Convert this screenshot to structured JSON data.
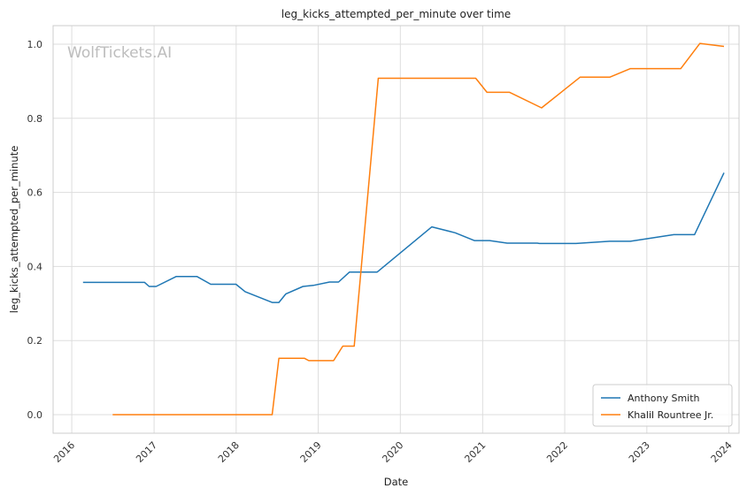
{
  "chart_data": {
    "type": "line",
    "title": "leg_kicks_attempted_per_minute over time",
    "xlabel": "Date",
    "ylabel": "leg_kicks_attempted_per_minute",
    "watermark": "WolfTickets.AI",
    "xlim": [
      "2015-10-10",
      "2024-02-15"
    ],
    "ylim": [
      -0.05,
      1.05
    ],
    "x_ticks": [
      "2016",
      "2017",
      "2018",
      "2019",
      "2020",
      "2021",
      "2022",
      "2023",
      "2024"
    ],
    "y_ticks": [
      "0.0",
      "0.2",
      "0.4",
      "0.6",
      "0.8",
      "1.0"
    ],
    "grid": true,
    "legend_position": "bottom-right",
    "series": [
      {
        "name": "Anthony Smith",
        "color": "#1f77b4",
        "points": [
          [
            "2016-02-20",
            0.357
          ],
          [
            "2016-11-20",
            0.357
          ],
          [
            "2016-12-10",
            0.346
          ],
          [
            "2017-01-10",
            0.346
          ],
          [
            "2017-04-10",
            0.373
          ],
          [
            "2017-07-10",
            0.373
          ],
          [
            "2017-09-10",
            0.352
          ],
          [
            "2017-12-31",
            0.352
          ],
          [
            "2018-02-10",
            0.332
          ],
          [
            "2018-06-10",
            0.303
          ],
          [
            "2018-07-10",
            0.303
          ],
          [
            "2018-08-10",
            0.326
          ],
          [
            "2018-10-25",
            0.346
          ],
          [
            "2018-12-10",
            0.349
          ],
          [
            "2019-02-20",
            0.358
          ],
          [
            "2019-04-01",
            0.358
          ],
          [
            "2019-05-20",
            0.385
          ],
          [
            "2019-09-20",
            0.385
          ],
          [
            "2020-05-20",
            0.507
          ],
          [
            "2020-09-01",
            0.491
          ],
          [
            "2020-11-25",
            0.47
          ],
          [
            "2021-02-01",
            0.47
          ],
          [
            "2021-04-20",
            0.463
          ],
          [
            "2021-09-01",
            0.463
          ],
          [
            "2021-09-10",
            0.462
          ],
          [
            "2022-02-20",
            0.462
          ],
          [
            "2022-07-20",
            0.468
          ],
          [
            "2022-10-20",
            0.468
          ],
          [
            "2023-05-01",
            0.486
          ],
          [
            "2023-08-01",
            0.486
          ],
          [
            "2023-12-10",
            0.653
          ]
        ]
      },
      {
        "name": "Khalil Rountree Jr.",
        "color": "#ff7f0e",
        "points": [
          [
            "2016-07-01",
            0.0
          ],
          [
            "2018-06-10",
            0.0
          ],
          [
            "2018-07-10",
            0.152
          ],
          [
            "2018-11-01",
            0.152
          ],
          [
            "2018-11-20",
            0.146
          ],
          [
            "2019-03-10",
            0.146
          ],
          [
            "2019-04-20",
            0.185
          ],
          [
            "2019-06-10",
            0.185
          ],
          [
            "2019-09-25",
            0.908
          ],
          [
            "2020-12-01",
            0.908
          ],
          [
            "2021-01-20",
            0.87
          ],
          [
            "2021-05-01",
            0.87
          ],
          [
            "2021-09-20",
            0.828
          ],
          [
            "2022-03-10",
            0.911
          ],
          [
            "2022-07-20",
            0.911
          ],
          [
            "2022-10-20",
            0.934
          ],
          [
            "2023-06-01",
            0.934
          ],
          [
            "2023-08-25",
            1.002
          ],
          [
            "2023-12-10",
            0.994
          ]
        ]
      }
    ]
  }
}
